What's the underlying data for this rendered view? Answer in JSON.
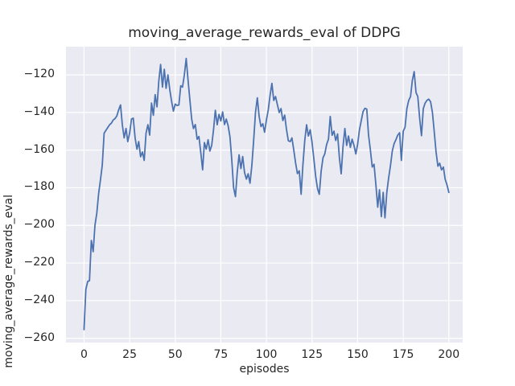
{
  "chart_data": {
    "type": "line",
    "title": "moving_average_rewards_eval of DDPG",
    "xlabel": "episodes",
    "ylabel": "moving_average_rewards_eval",
    "xticks": [
      0,
      25,
      50,
      75,
      100,
      125,
      150,
      175,
      200
    ],
    "yticks": [
      -260,
      -240,
      -220,
      -200,
      -180,
      -160,
      -140,
      -120
    ],
    "xlim": [
      -9.9,
      207.6
    ],
    "ylim": [
      -262.3,
      -105.0
    ],
    "grid": true,
    "legend_position": "none",
    "colors": {
      "line": "#4c72b0",
      "axes_background": "#eaeaf2",
      "grid": "#ffffff",
      "figure_background": "#ffffff",
      "text": "#262626"
    },
    "series": [
      {
        "name": "moving_average_rewards_eval",
        "x_start": 0,
        "x_step": 1,
        "y": [
          -255.4,
          -234,
          -229.8,
          -229.4,
          -208,
          -214,
          -200,
          -193.5,
          -183,
          -176,
          -168,
          -151,
          -149.5,
          -148,
          -146.5,
          -145.7,
          -144,
          -143.2,
          -141.8,
          -138.5,
          -136,
          -146.5,
          -153.5,
          -148.5,
          -155.5,
          -151,
          -143.5,
          -143,
          -153.5,
          -159.5,
          -155.5,
          -163.5,
          -161,
          -165.5,
          -151,
          -146.5,
          -152,
          -135,
          -141.5,
          -130.5,
          -137,
          -123,
          -114.5,
          -126.5,
          -117,
          -127.2,
          -120,
          -127.9,
          -134,
          -139.3,
          -135.5,
          -136.3,
          -136,
          -125.8,
          -126.5,
          -120,
          -111.3,
          -122.3,
          -133,
          -143.5,
          -148.5,
          -146.4,
          -154.2,
          -152.8,
          -161.2,
          -170.5,
          -156,
          -159.5,
          -154.5,
          -160.5,
          -157.5,
          -149,
          -138.8,
          -146.5,
          -141,
          -144.5,
          -139.7,
          -146.4,
          -143.5,
          -147,
          -153,
          -165,
          -180,
          -184.7,
          -172,
          -162.5,
          -169.8,
          -163.4,
          -171.9,
          -175.4,
          -172.6,
          -177.6,
          -168,
          -155,
          -140,
          -132.2,
          -142,
          -147.5,
          -146,
          -150.5,
          -144,
          -138.5,
          -131,
          -124.5,
          -133.6,
          -131.5,
          -135.8,
          -140,
          -137.9,
          -144.3,
          -141.4,
          -149,
          -155,
          -155.5,
          -153.5,
          -160,
          -167,
          -172.5,
          -171,
          -183.5,
          -168,
          -155,
          -146.5,
          -152.5,
          -149.2,
          -156,
          -164.5,
          -174,
          -180.5,
          -183.5,
          -171.2,
          -164.1,
          -162,
          -157,
          -154.2,
          -142.1,
          -152.1,
          -149.9,
          -154.9,
          -151.4,
          -164.1,
          -172.6,
          -158,
          -148.5,
          -157.5,
          -152.5,
          -158.5,
          -154.2,
          -157.5,
          -162,
          -157,
          -149.2,
          -144.2,
          -139.5,
          -137.8,
          -138.2,
          -152,
          -160,
          -169,
          -167.5,
          -178.3,
          -190.3,
          -181.1,
          -195.3,
          -182.5,
          -196,
          -182.5,
          -174.7,
          -168.4,
          -160.5,
          -156.5,
          -154.5,
          -152,
          -150.8,
          -165.5,
          -150,
          -147.8,
          -138,
          -133.6,
          -131.5,
          -123,
          -118.3,
          -129.4,
          -131.5,
          -143,
          -152.3,
          -138,
          -135,
          -133.5,
          -132.9,
          -134.3,
          -140,
          -150,
          -161,
          -168.5,
          -167,
          -170.5,
          -169,
          -175.5,
          -178.5,
          -182.5
        ]
      }
    ]
  }
}
